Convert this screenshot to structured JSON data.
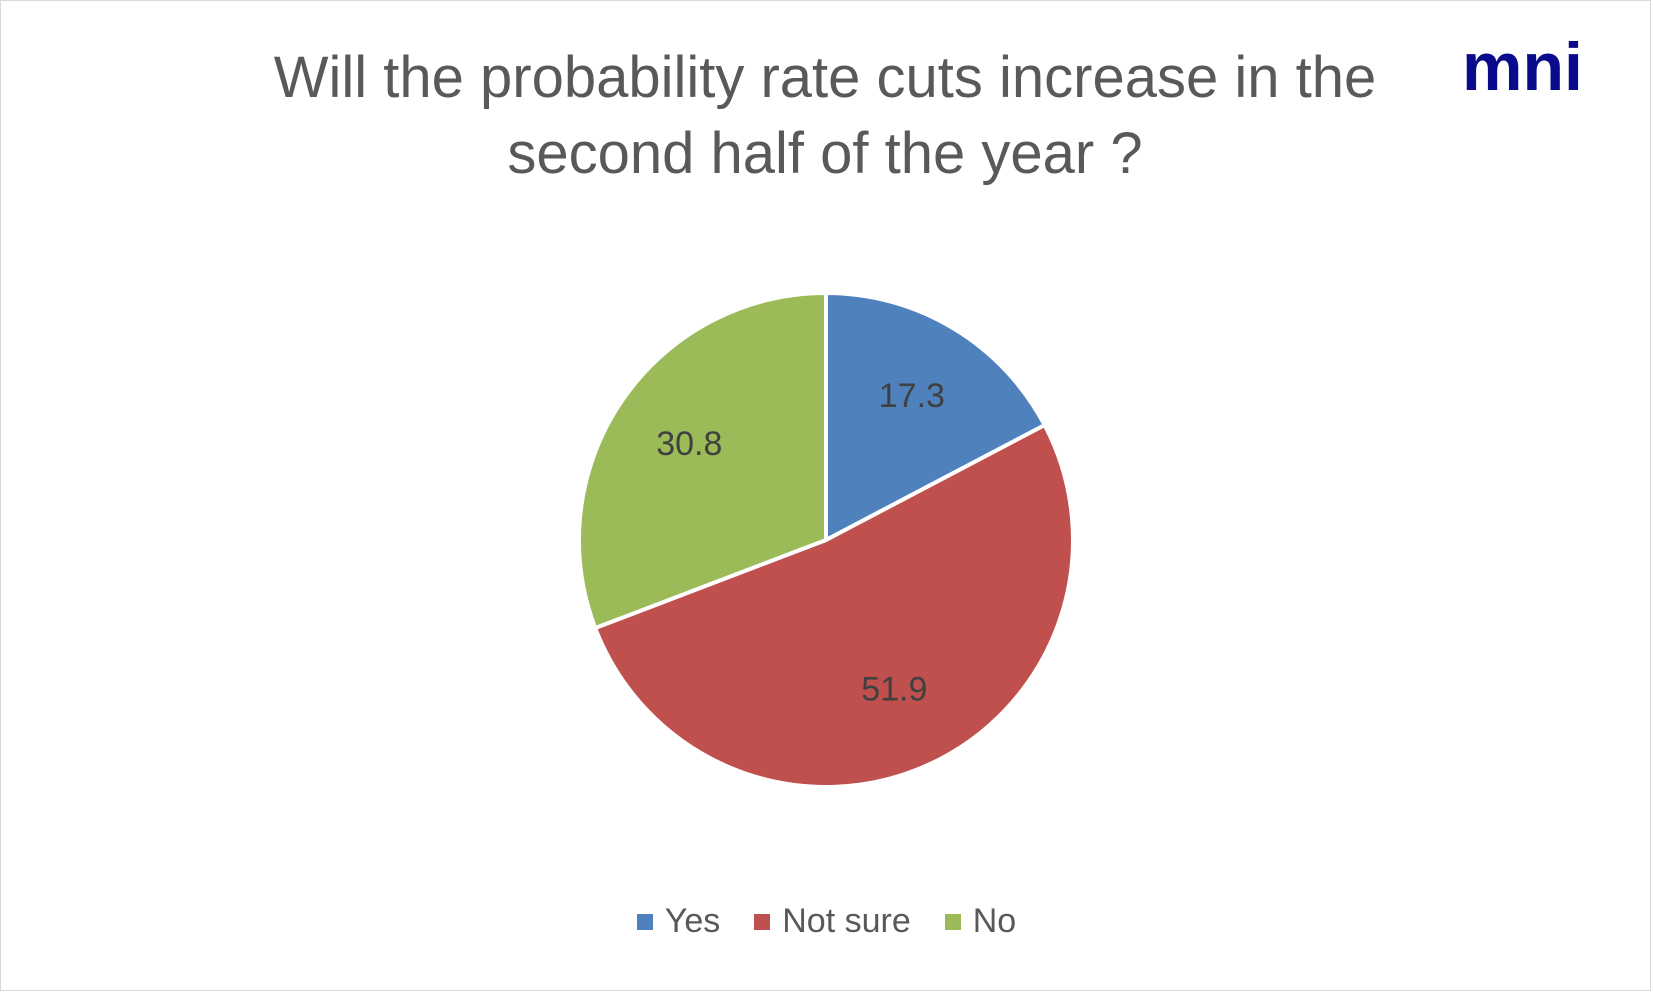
{
  "title_lines": [
    "Will the probability rate cuts increase in the",
    "second half of the year ?"
  ],
  "logo": {
    "text": "mni",
    "color": "#0a0a8c"
  },
  "chart_data": {
    "type": "pie",
    "title": "Will the probability rate cuts increase in the second half of the year ?",
    "categories": [
      "Yes",
      "Not sure",
      "No"
    ],
    "values": [
      17.3,
      51.9,
      30.8
    ],
    "data_labels": [
      "17.3",
      "51.9",
      "30.8"
    ],
    "colors": [
      "#4f81bd",
      "#c0504d",
      "#9bbb59"
    ],
    "start_angle": "12 o'clock",
    "direction": "clockwise",
    "legend_position": "bottom"
  }
}
